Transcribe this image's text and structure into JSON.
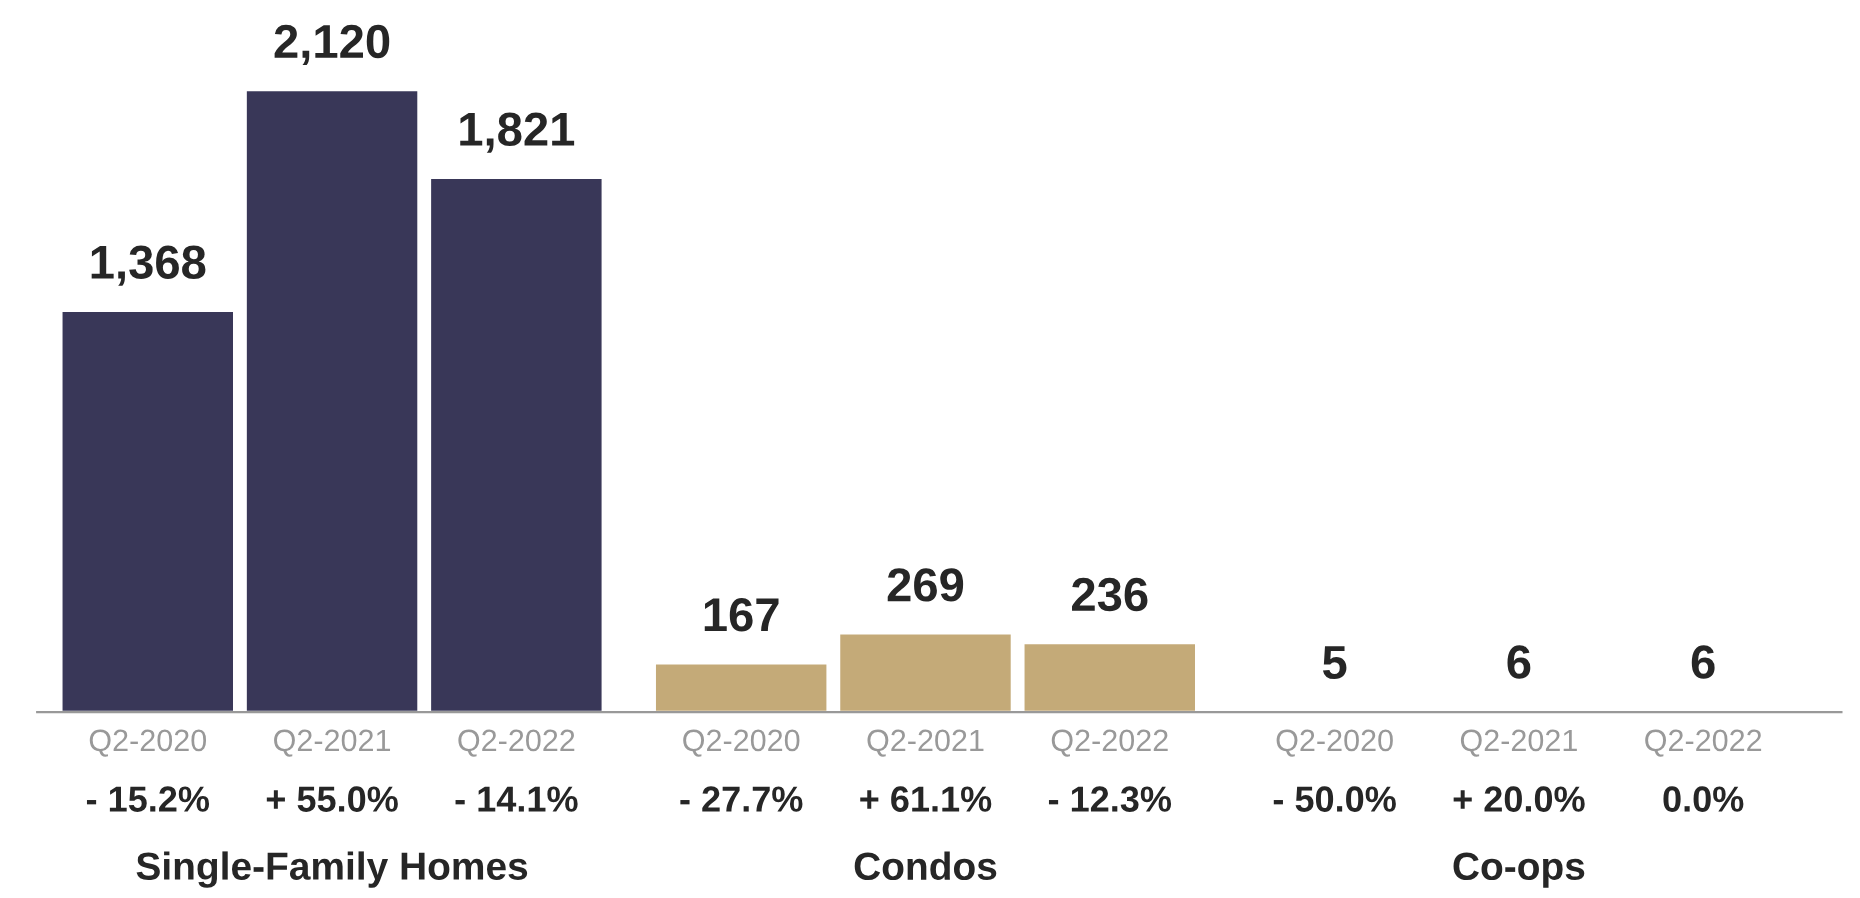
{
  "chart_data": {
    "type": "bar",
    "categories": [
      "Q2-2020",
      "Q2-2021",
      "Q2-2022",
      "Q2-2020",
      "Q2-2021",
      "Q2-2022",
      "Q2-2020",
      "Q2-2021",
      "Q2-2022"
    ],
    "series": [
      {
        "color": "#393758",
        "values": [
          1368,
          2120,
          1821,
          null,
          null,
          null,
          null,
          null,
          null
        ],
        "value_labels": [
          "1,368",
          "2,120",
          "1,821",
          null,
          null,
          null,
          null,
          null,
          null
        ]
      },
      {
        "color": "#c4aa78",
        "values": [
          null,
          null,
          null,
          167,
          269,
          236,
          null,
          null,
          null
        ],
        "value_labels": [
          null,
          null,
          null,
          "167",
          "269",
          "236",
          null,
          null,
          null
        ]
      },
      {
        "color": "#8c8c8c",
        "values": [
          null,
          null,
          null,
          null,
          null,
          null,
          5,
          6,
          6
        ],
        "value_labels": [
          null,
          null,
          null,
          null,
          null,
          null,
          "5",
          "6",
          "6"
        ]
      }
    ],
    "legend": false,
    "grid": false,
    "annotations": [
      "- 15.2%",
      "+ 55.0%",
      "- 14.1%",
      "- 27.7%",
      "+ 61.1%",
      "- 12.3%",
      "- 50.0%",
      "+ 20.0%",
      "0.0%",
      "Single-Family Homes",
      "Condos",
      "Co-ops"
    ]
  }
}
